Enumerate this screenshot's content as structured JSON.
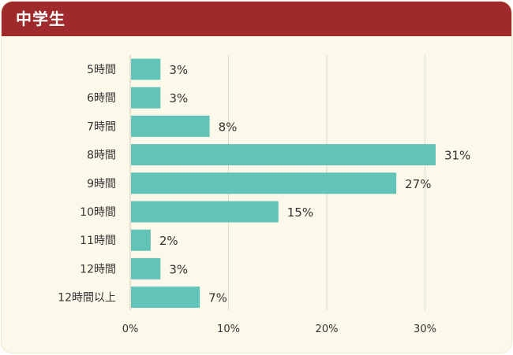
{
  "panel": {
    "title": "中学生"
  },
  "colors": {
    "header": "#9e2a2b",
    "background": "#fcf9ea",
    "bar": "#62c3b9",
    "grid": "#ddd8c8",
    "text": "#333333"
  },
  "chart_data": {
    "type": "bar",
    "orientation": "horizontal",
    "title": "中学生",
    "categories": [
      "5時間",
      "6時間",
      "7時間",
      "8時間",
      "9時間",
      "10時間",
      "11時間",
      "12時間",
      "12時間以上"
    ],
    "values": [
      3,
      3,
      8,
      31,
      27,
      15,
      2,
      3,
      7
    ],
    "value_labels": [
      "3%",
      "3%",
      "8%",
      "31%",
      "27%",
      "15%",
      "2%",
      "3%",
      "7%"
    ],
    "xticks": [
      0,
      10,
      20,
      30
    ],
    "xtick_labels": [
      "0%",
      "10%",
      "20%",
      "30%"
    ],
    "xlim": [
      0,
      33
    ],
    "grid": "vertical",
    "legend": "none"
  }
}
